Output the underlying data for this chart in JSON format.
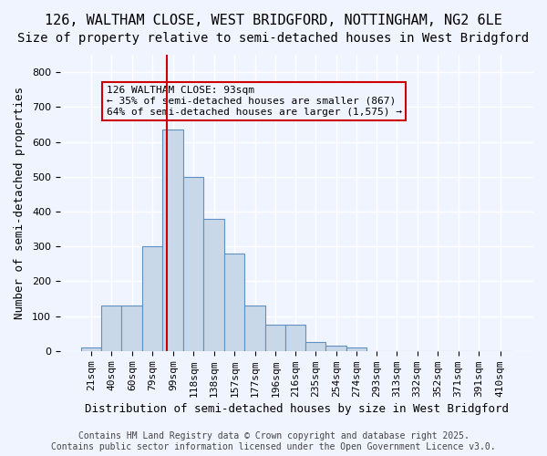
{
  "title1": "126, WALTHAM CLOSE, WEST BRIDGFORD, NOTTINGHAM, NG2 6LE",
  "title2": "Size of property relative to semi-detached houses in West Bridgford",
  "xlabel": "Distribution of semi-detached houses by size in West Bridgford",
  "ylabel": "Number of semi-detached properties",
  "bin_edges": [
    11.5,
    30.5,
    49.5,
    69.5,
    88.5,
    108.5,
    127.5,
    147.5,
    166.5,
    186.5,
    205.5,
    224.5,
    243.5,
    263.5,
    282.5,
    301.5,
    320.5,
    340.5,
    359.5,
    379.5,
    398.5,
    420.5
  ],
  "bin_labels": [
    "21sqm",
    "40sqm",
    "60sqm",
    "79sqm",
    "99sqm",
    "118sqm",
    "138sqm",
    "157sqm",
    "177sqm",
    "196sqm",
    "216sqm",
    "235sqm",
    "254sqm",
    "274sqm",
    "293sqm",
    "313sqm",
    "332sqm",
    "352sqm",
    "371sqm",
    "391sqm",
    "410sqm"
  ],
  "bar_heights": [
    10,
    130,
    130,
    300,
    635,
    500,
    380,
    280,
    130,
    75,
    75,
    25,
    15,
    10,
    0,
    0,
    0,
    0,
    0,
    0,
    0
  ],
  "bar_color": "#c8d8e8",
  "bar_edgecolor": "#6090c0",
  "property_line_x": 93,
  "property_line_color": "#cc0000",
  "annotation_text": "126 WALTHAM CLOSE: 93sqm\n← 35% of semi-detached houses are smaller (867)\n64% of semi-detached houses are larger (1,575) →",
  "annotation_box_color": "#cc0000",
  "ylim": [
    0,
    850
  ],
  "yticks": [
    0,
    100,
    200,
    300,
    400,
    500,
    600,
    700,
    800
  ],
  "background_color": "#f0f4ff",
  "grid_color": "#ffffff",
  "footer_text": "Contains HM Land Registry data © Crown copyright and database right 2025.\nContains public sector information licensed under the Open Government Licence v3.0.",
  "title1_fontsize": 11,
  "title2_fontsize": 10,
  "xlabel_fontsize": 9,
  "ylabel_fontsize": 9,
  "tick_fontsize": 8,
  "annotation_fontsize": 8,
  "footer_fontsize": 7
}
